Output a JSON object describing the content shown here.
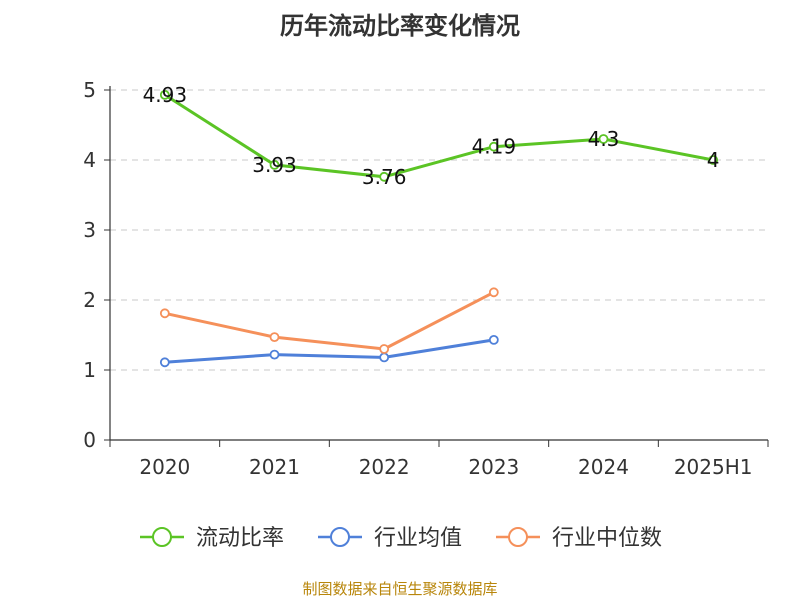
{
  "chart_data": {
    "type": "line",
    "title": "历年流动比率变化情况",
    "categories": [
      "2020",
      "2021",
      "2022",
      "2023",
      "2024",
      "2025H1"
    ],
    "ylim": [
      0,
      5
    ],
    "yticks": [
      "0",
      "1",
      "2",
      "3",
      "4",
      "5"
    ],
    "grid": true,
    "legend_position": "bottom",
    "series": [
      {
        "name": "流动比率",
        "color": "#5bc425",
        "values": [
          4.93,
          3.93,
          3.76,
          4.19,
          4.3,
          4
        ],
        "labels": [
          "4.93",
          "3.93",
          "3.76",
          "4.19",
          "4.3",
          "4"
        ]
      },
      {
        "name": "行业均值",
        "color": "#4f80d9",
        "values": [
          1.11,
          1.22,
          1.18,
          1.43,
          null,
          null
        ]
      },
      {
        "name": "行业中位数",
        "color": "#f5905a",
        "values": [
          1.81,
          1.47,
          1.3,
          2.11,
          null,
          null
        ]
      }
    ]
  },
  "source": "制图数据来自恒生聚源数据库"
}
